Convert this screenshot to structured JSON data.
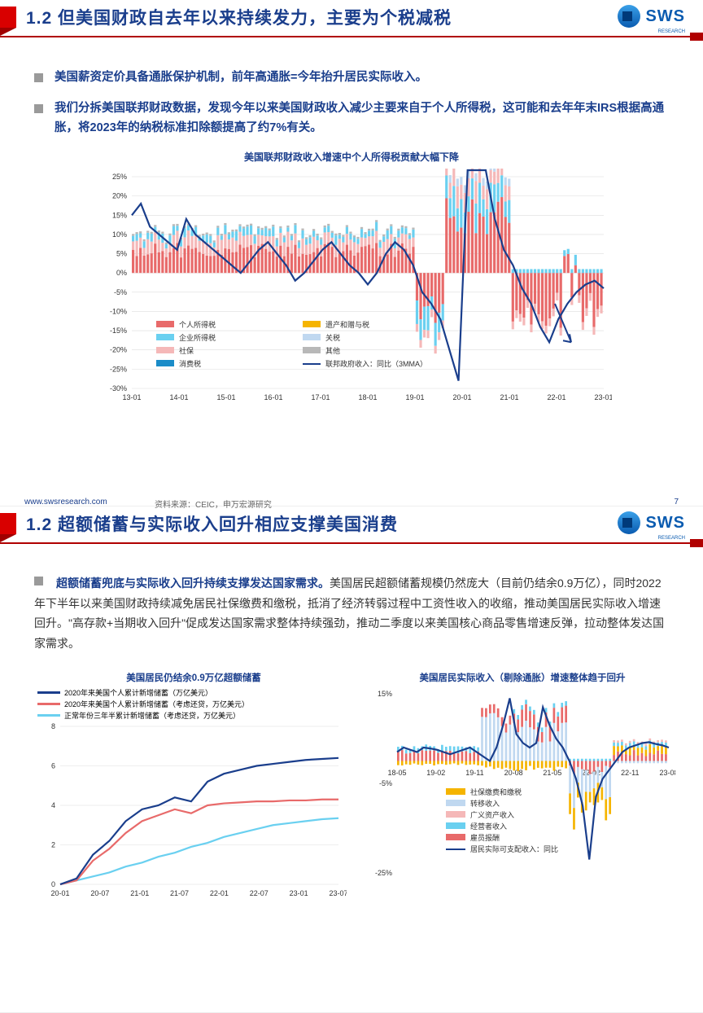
{
  "logo": {
    "text": "SWS",
    "sub": "RESEARCH"
  },
  "slide1": {
    "title": "1.2 但美国财政自去年以来持续发力，主要为个税减税",
    "bullets": [
      "美国薪资定价具备通胀保护机制，前年高通胀=今年抬升居民实际收入。",
      "我们分拆美国联邦财政数据，发现今年以来美国财政收入减少主要来自于个人所得税，这可能和去年年末IRS根据高通胀，将2023年的纳税标准扣除额提高了约7%有关。"
    ],
    "chart": {
      "title": "美国联邦财政收入增速中个人所得税贡献大幅下降",
      "ylim": [
        -30,
        25
      ],
      "ytick": 5,
      "xTicks": [
        "13-01",
        "14-01",
        "15-01",
        "16-01",
        "17-01",
        "18-01",
        "19-01",
        "20-01",
        "21-01",
        "22-01",
        "23-01"
      ],
      "legend": [
        {
          "label": "个人所得税",
          "color": "#e86a6a",
          "type": "box"
        },
        {
          "label": "企业所得税",
          "color": "#6ad0f0",
          "type": "box"
        },
        {
          "label": "社保",
          "color": "#f5b8b8",
          "type": "box"
        },
        {
          "label": "消费税",
          "color": "#1a8cc8",
          "type": "box"
        },
        {
          "label": "遗产和赠与税",
          "color": "#f5b400",
          "type": "box"
        },
        {
          "label": "关税",
          "color": "#c0d8f0",
          "type": "box"
        },
        {
          "label": "其他",
          "color": "#b8b8b8",
          "type": "box"
        },
        {
          "label": "联邦政府收入：同比（3MMA）",
          "color": "#1a3e8c",
          "type": "line"
        }
      ],
      "line": [
        15,
        18,
        12,
        10,
        8,
        6,
        14,
        10,
        8,
        6,
        4,
        2,
        0,
        3,
        6,
        8,
        5,
        2,
        -2,
        0,
        3,
        6,
        8,
        5,
        2,
        0,
        -3,
        0,
        5,
        8,
        6,
        2,
        -5,
        -8,
        -12,
        -20,
        -28,
        30,
        42,
        28,
        14,
        6,
        2,
        -4,
        -8,
        -14,
        -18,
        -12,
        -8,
        -5,
        -3,
        -2,
        -4
      ],
      "bars_colors": [
        "#e86a6a",
        "#f5b8b8",
        "#6ad0f0",
        "#1a8cc8",
        "#f5b400",
        "#c0d8f0",
        "#b8b8b8"
      ]
    },
    "footer": {
      "url": "www.swsresearch.com",
      "src": "资料来源：CEIC，申万宏源研究",
      "page": "7"
    }
  },
  "slide2": {
    "title": "1.2 超额储蓄与实际收入回升相应支撑美国消费",
    "body_lead": "超额储蓄兜底与实际收入回升持续支撑发达国家需求。",
    "body_rest": "美国居民超额储蓄规模仍然庞大（目前仍结余0.9万亿），同时2022年下半年以来美国财政持续减免居民社保缴费和缴税，抵消了经济转弱过程中工资性收入的收缩，推动美国居民实际收入增速回升。\"高存款+当期收入回升\"促成发达国家需求整体持续强劲，推动二季度以来美国核心商品零售增速反弹，拉动整体发达国家需求。",
    "chartA": {
      "title": "美国居民仍结余0.9万亿超额储蓄",
      "legend": [
        {
          "label": "2020年来美国个人累计新增储蓄（万亿美元）",
          "color": "#1a3e8c"
        },
        {
          "label": "2020年来美国个人累计新增储蓄（考虑还贷，万亿美元）",
          "color": "#e86a6a"
        },
        {
          "label": "正常年份三年半累计新增储蓄（考虑还贷，万亿美元）",
          "color": "#6ad0f0"
        }
      ],
      "ylim": [
        0,
        8
      ],
      "ytick": 2,
      "xTicks": [
        "20-01",
        "20-07",
        "21-01",
        "21-07",
        "22-01",
        "22-07",
        "23-01",
        "23-07"
      ],
      "series": {
        "a": [
          0,
          0.3,
          1.5,
          2.2,
          3.2,
          3.8,
          4.0,
          4.4,
          4.2,
          5.2,
          5.6,
          5.8,
          6.0,
          6.1,
          6.2,
          6.3,
          6.35,
          6.4
        ],
        "b": [
          0,
          0.2,
          1.2,
          1.8,
          2.6,
          3.2,
          3.5,
          3.8,
          3.6,
          4.0,
          4.1,
          4.15,
          4.2,
          4.2,
          4.25,
          4.25,
          4.3,
          4.3
        ],
        "c": [
          0,
          0.2,
          0.4,
          0.6,
          0.9,
          1.1,
          1.4,
          1.6,
          1.9,
          2.1,
          2.4,
          2.6,
          2.8,
          3.0,
          3.1,
          3.2,
          3.3,
          3.35
        ]
      }
    },
    "chartB": {
      "title": "美国居民实际收入（剔除通胀）增速整体趋于回升",
      "ylim": [
        -25,
        15
      ],
      "yticks": [
        -25,
        -5,
        15
      ],
      "xTicks": [
        "18-05",
        "19-02",
        "19-11",
        "20-08",
        "21-05",
        "22-02",
        "22-11",
        "23-08"
      ],
      "legend": [
        {
          "label": "社保缴费和缴税",
          "color": "#f5b400"
        },
        {
          "label": "转移收入",
          "color": "#c0d8f0"
        },
        {
          "label": "广义资产收入",
          "color": "#f5b8b8"
        },
        {
          "label": "经营者收入",
          "color": "#6ad0f0"
        },
        {
          "label": "雇员报酬",
          "color": "#e86a6a"
        },
        {
          "label": "居民实际可支配收入：同比",
          "color": "#1a3e8c"
        }
      ],
      "line": [
        2,
        3,
        2.5,
        2,
        3,
        2.8,
        2.5,
        2,
        1.5,
        2,
        2.5,
        3,
        2,
        1,
        0,
        3,
        8,
        14,
        6,
        4,
        3,
        4,
        12,
        8,
        5,
        3,
        0,
        -4,
        -10,
        -22,
        -8,
        -4,
        -2,
        0,
        2,
        3,
        3.5,
        4,
        4.2,
        3.8,
        3.5,
        3
      ]
    }
  }
}
